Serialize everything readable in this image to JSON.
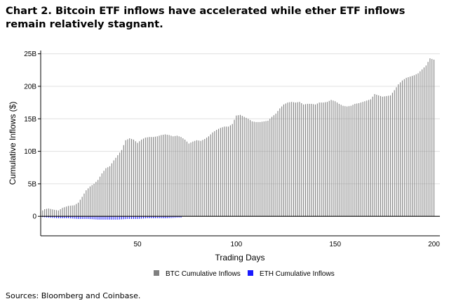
{
  "title": {
    "line1": "Chart 2. Bitcoin ETF inflows have accelerated while ether ETF inflows",
    "line2": "remain relatively stagnant."
  },
  "source": "Sources: Bloomberg and Coinbase.",
  "colors": {
    "btc": "#808080",
    "eth": "#1a1aff",
    "axis": "#000000",
    "grid": "#e0e0e0"
  },
  "chart_data": {
    "type": "bar",
    "xlabel": "Trading Days",
    "ylabel": "Cumulative Inflows ($)",
    "xlim": [
      1,
      203
    ],
    "ylim": [
      -3,
      25.5
    ],
    "x_ticks": [
      50,
      100,
      150,
      200
    ],
    "y_ticks": [
      {
        "value": 0,
        "label": "0"
      },
      {
        "value": 5,
        "label": "5B"
      },
      {
        "value": 10,
        "label": "10B"
      },
      {
        "value": 15,
        "label": "15B"
      },
      {
        "value": 20,
        "label": "20B"
      },
      {
        "value": 25,
        "label": "25B"
      }
    ],
    "unit": "billions USD",
    "grid": true,
    "legend_position": "bottom-center",
    "series": [
      {
        "name": "BTC Cumulative Inflows",
        "color": "#808080",
        "points": [
          [
            1,
            0.7
          ],
          [
            3,
            1.1
          ],
          [
            5,
            1.2
          ],
          [
            8,
            1.0
          ],
          [
            10,
            0.9
          ],
          [
            12,
            1.3
          ],
          [
            15,
            1.6
          ],
          [
            18,
            1.7
          ],
          [
            20,
            2.1
          ],
          [
            22,
            3.0
          ],
          [
            24,
            4.0
          ],
          [
            26,
            4.6
          ],
          [
            28,
            5.0
          ],
          [
            30,
            5.6
          ],
          [
            32,
            6.6
          ],
          [
            34,
            7.4
          ],
          [
            36,
            7.7
          ],
          [
            38,
            8.6
          ],
          [
            40,
            9.4
          ],
          [
            42,
            10.2
          ],
          [
            44,
            11.7
          ],
          [
            46,
            12.0
          ],
          [
            48,
            11.8
          ],
          [
            50,
            11.3
          ],
          [
            52,
            11.8
          ],
          [
            54,
            12.1
          ],
          [
            56,
            12.2
          ],
          [
            58,
            12.2
          ],
          [
            60,
            12.3
          ],
          [
            62,
            12.5
          ],
          [
            64,
            12.6
          ],
          [
            66,
            12.5
          ],
          [
            68,
            12.3
          ],
          [
            70,
            12.4
          ],
          [
            72,
            12.2
          ],
          [
            74,
            11.8
          ],
          [
            76,
            11.2
          ],
          [
            78,
            11.5
          ],
          [
            80,
            11.7
          ],
          [
            82,
            11.6
          ],
          [
            84,
            11.9
          ],
          [
            86,
            12.3
          ],
          [
            88,
            12.9
          ],
          [
            90,
            13.3
          ],
          [
            92,
            13.6
          ],
          [
            94,
            13.8
          ],
          [
            96,
            13.8
          ],
          [
            98,
            14.2
          ],
          [
            100,
            15.5
          ],
          [
            102,
            15.6
          ],
          [
            104,
            15.3
          ],
          [
            106,
            15.0
          ],
          [
            108,
            14.6
          ],
          [
            110,
            14.5
          ],
          [
            112,
            14.5
          ],
          [
            114,
            14.6
          ],
          [
            116,
            14.7
          ],
          [
            118,
            15.3
          ],
          [
            120,
            15.8
          ],
          [
            122,
            16.6
          ],
          [
            124,
            17.2
          ],
          [
            126,
            17.5
          ],
          [
            128,
            17.6
          ],
          [
            130,
            17.5
          ],
          [
            132,
            17.6
          ],
          [
            134,
            17.2
          ],
          [
            136,
            17.3
          ],
          [
            138,
            17.3
          ],
          [
            140,
            17.2
          ],
          [
            142,
            17.5
          ],
          [
            144,
            17.5
          ],
          [
            146,
            17.6
          ],
          [
            148,
            17.9
          ],
          [
            150,
            17.7
          ],
          [
            152,
            17.3
          ],
          [
            154,
            17.0
          ],
          [
            156,
            16.9
          ],
          [
            158,
            17.0
          ],
          [
            160,
            17.3
          ],
          [
            162,
            17.4
          ],
          [
            164,
            17.6
          ],
          [
            166,
            17.8
          ],
          [
            168,
            18.0
          ],
          [
            170,
            18.8
          ],
          [
            172,
            18.6
          ],
          [
            174,
            18.4
          ],
          [
            176,
            18.5
          ],
          [
            178,
            18.6
          ],
          [
            180,
            19.4
          ],
          [
            182,
            20.3
          ],
          [
            184,
            20.9
          ],
          [
            186,
            21.3
          ],
          [
            188,
            21.5
          ],
          [
            190,
            21.7
          ],
          [
            192,
            22.0
          ],
          [
            194,
            22.6
          ],
          [
            196,
            23.2
          ],
          [
            198,
            24.3
          ],
          [
            200,
            24.1
          ]
        ]
      },
      {
        "name": "ETH Cumulative Inflows",
        "color": "#1a1aff",
        "points": [
          [
            1,
            -0.1
          ],
          [
            5,
            -0.2
          ],
          [
            10,
            -0.3
          ],
          [
            15,
            -0.3
          ],
          [
            20,
            -0.4
          ],
          [
            25,
            -0.4
          ],
          [
            30,
            -0.5
          ],
          [
            35,
            -0.5
          ],
          [
            40,
            -0.5
          ],
          [
            45,
            -0.4
          ],
          [
            50,
            -0.4
          ],
          [
            55,
            -0.3
          ],
          [
            60,
            -0.3
          ],
          [
            65,
            -0.3
          ],
          [
            70,
            -0.2
          ],
          [
            72,
            -0.2
          ]
        ]
      }
    ]
  }
}
